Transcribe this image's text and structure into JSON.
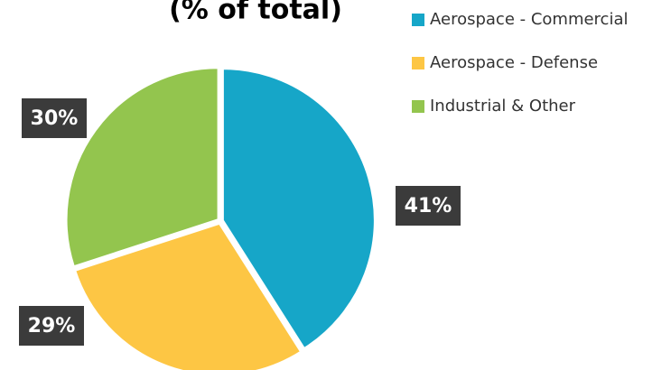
{
  "chart_data": {
    "type": "pie",
    "title": "(% of total)",
    "categories": [
      "Aerospace - Commercial",
      "Aerospace - Defense",
      "Industrial & Other"
    ],
    "values": [
      41,
      29,
      30
    ],
    "value_labels": [
      "41%",
      "29%",
      "30%"
    ],
    "colors": [
      "#16a6c8",
      "#fdc644",
      "#93c54e"
    ],
    "legend": "right"
  }
}
